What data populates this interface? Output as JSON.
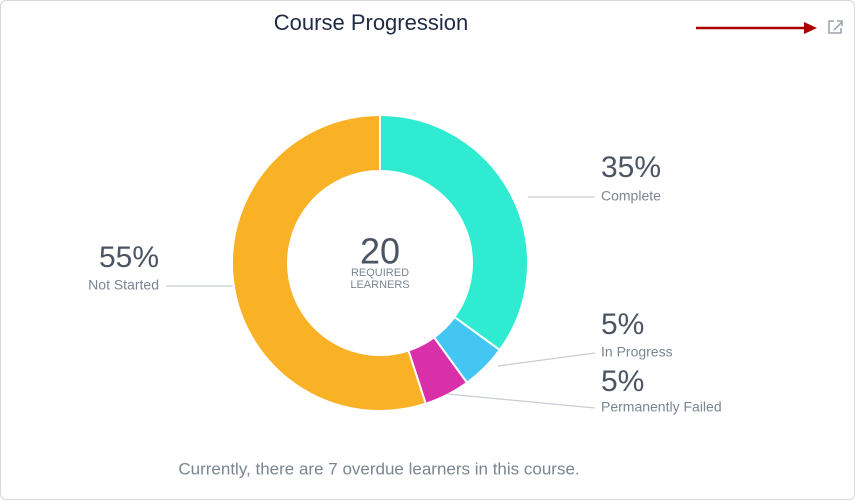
{
  "chart_data": {
    "type": "pie",
    "donut": true,
    "title": "Course Progression",
    "categories": [
      "Complete",
      "In Progress",
      "Permanently Failed",
      "Not Started"
    ],
    "values": [
      35,
      5,
      5,
      55
    ],
    "value_labels": [
      "35%",
      "5%",
      "5%",
      "55%"
    ],
    "colors": [
      "#2eebd1",
      "#44c6f2",
      "#d92fa8",
      "#f9b126"
    ],
    "center_value": 20,
    "center_label": "REQUIRED LEARNERS",
    "footer": "Currently, there are 7 overdue learners in this course."
  }
}
